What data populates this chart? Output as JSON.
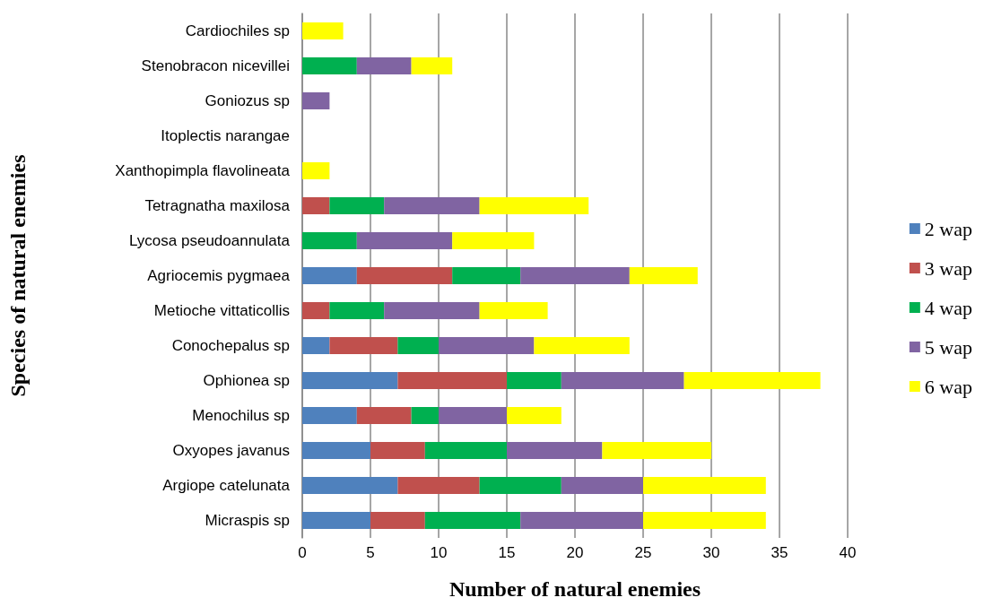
{
  "chart_data": {
    "type": "bar",
    "orientation": "horizontal",
    "stacked": true,
    "xlabel": "Number of natural enemies",
    "ylabel": "Species of natural enemies",
    "categories": [
      "Cardiochiles sp",
      "Stenobracon nicevillei",
      "Goniozus sp",
      "Itoplectis narangae",
      "Xanthopimpla flavolineata",
      "Tetragnatha maxilosa",
      "Lycosa pseudoannulata",
      "Agriocemis pygmaea",
      "Metioche vittaticollis",
      "Conochepalus sp",
      "Ophionea sp",
      "Menochilus sp",
      "Oxyopes javanus",
      "Argiope catelunata",
      "Micraspis sp"
    ],
    "series": [
      {
        "name": "2 wap",
        "color": "#4f81bd",
        "values": [
          0,
          0,
          0,
          0,
          0,
          0,
          0,
          4,
          0,
          2,
          7,
          4,
          5,
          7,
          5
        ]
      },
      {
        "name": "3 wap",
        "color": "#c0504d",
        "values": [
          0,
          0,
          0,
          0,
          0,
          2,
          0,
          7,
          2,
          5,
          8,
          4,
          4,
          6,
          4
        ]
      },
      {
        "name": "4 wap",
        "color": "#00b050",
        "values": [
          0,
          4,
          0,
          0,
          0,
          4,
          4,
          5,
          4,
          3,
          4,
          2,
          6,
          6,
          7
        ]
      },
      {
        "name": "5 wap",
        "color": "#8064a2",
        "values": [
          0,
          4,
          2,
          0,
          0,
          7,
          7,
          8,
          7,
          7,
          9,
          5,
          7,
          6,
          9
        ]
      },
      {
        "name": "6 wap",
        "color": "#ffff00",
        "values": [
          3,
          3,
          0,
          0,
          2,
          8,
          6,
          5,
          5,
          7,
          10,
          4,
          8,
          9,
          9
        ]
      }
    ],
    "xlim": [
      0,
      40
    ],
    "xticks": [
      0,
      5,
      10,
      15,
      20,
      25,
      30,
      35,
      40
    ],
    "grid": "x",
    "legend": "right"
  }
}
